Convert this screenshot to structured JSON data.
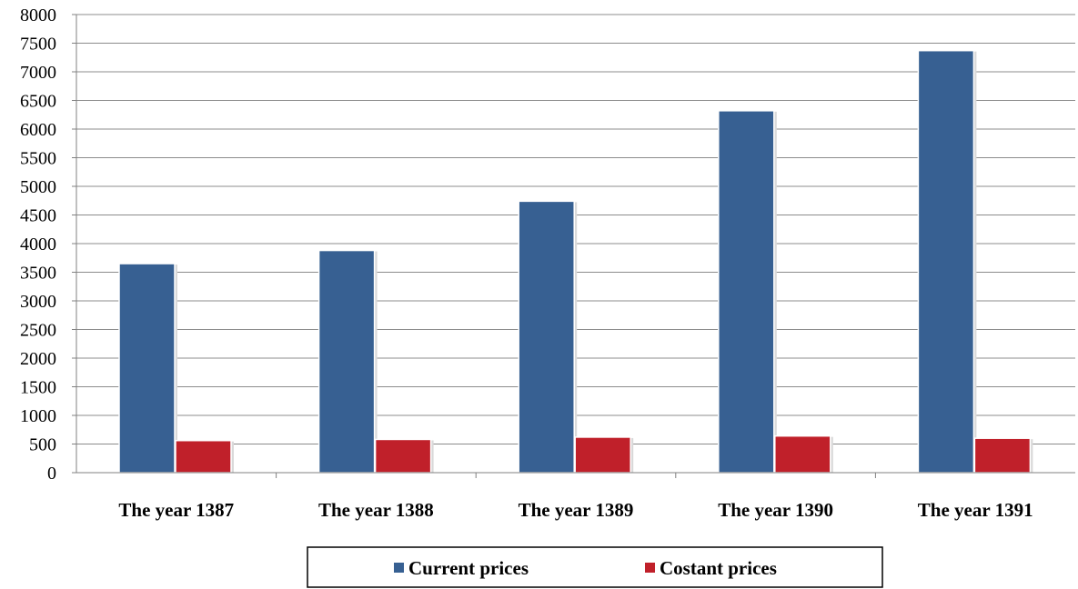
{
  "chart_data": {
    "type": "bar",
    "categories": [
      "The year 1387",
      "The year 1388",
      "The year 1389",
      "The year 1390",
      "The year 1391"
    ],
    "series": [
      {
        "name": "Current prices",
        "values": [
          3650,
          3880,
          4740,
          6320,
          7370
        ],
        "color": "#376092"
      },
      {
        "name": "Costant prices",
        "values": [
          560,
          580,
          620,
          640,
          600
        ],
        "color": "#c0202a"
      }
    ],
    "title": "",
    "xlabel": "",
    "ylabel": "",
    "ylim": [
      0,
      8000
    ],
    "yticks": [
      "0",
      "500",
      "1000",
      "1500",
      "2000",
      "2500",
      "3000",
      "3500",
      "4000",
      "4500",
      "5000",
      "5500",
      "6000",
      "6500",
      "7000",
      "7500",
      "8000"
    ],
    "grid": true,
    "legend_position": "bottom"
  }
}
